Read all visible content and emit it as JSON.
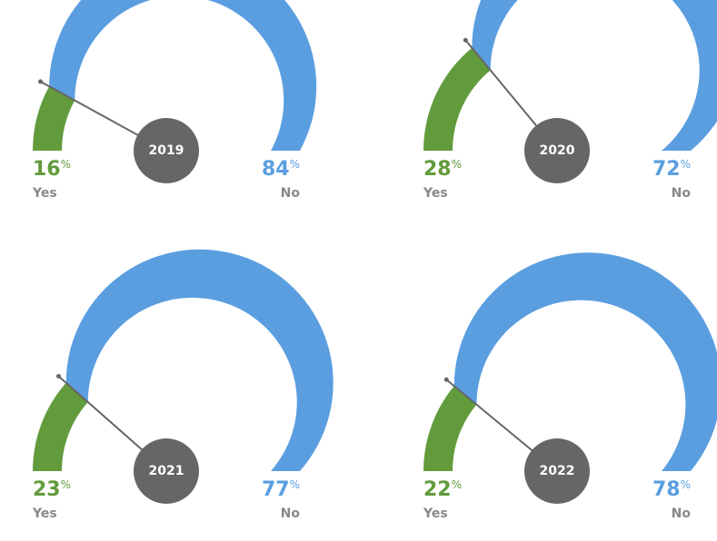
{
  "chart_data": [
    {
      "type": "gauge",
      "title": "2019",
      "categories": [
        "Yes",
        "No"
      ],
      "values": [
        16,
        84
      ],
      "unit": "%",
      "colors": [
        "#629b3c",
        "#5a9ee0"
      ]
    },
    {
      "type": "gauge",
      "title": "2020",
      "categories": [
        "Yes",
        "No"
      ],
      "values": [
        28,
        72
      ],
      "unit": "%",
      "colors": [
        "#629b3c",
        "#5a9ee0"
      ]
    },
    {
      "type": "gauge",
      "title": "2021",
      "categories": [
        "Yes",
        "No"
      ],
      "values": [
        23,
        77
      ],
      "unit": "%",
      "colors": [
        "#629b3c",
        "#5a9ee0"
      ]
    },
    {
      "type": "gauge",
      "title": "2022",
      "categories": [
        "Yes",
        "No"
      ],
      "values": [
        22,
        78
      ],
      "unit": "%",
      "colors": [
        "#629b3c",
        "#5a9ee0"
      ]
    }
  ]
}
